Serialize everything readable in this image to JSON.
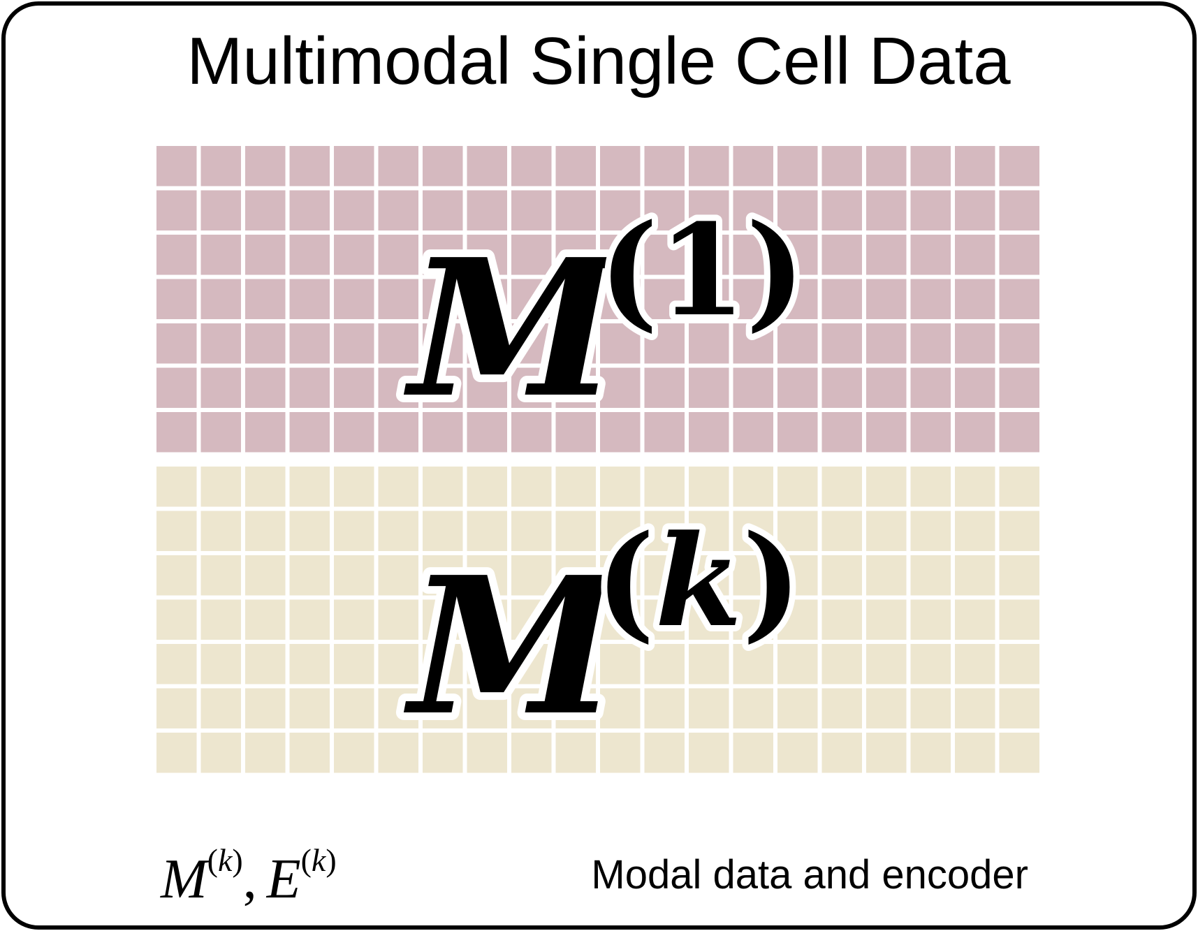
{
  "title": "Multimodal Single Cell Data",
  "modalities": [
    {
      "id": "modality-1",
      "base": "M",
      "superscript": "1",
      "color": "#d5b9bf",
      "rows": 7,
      "cols": 20
    },
    {
      "id": "modality-k",
      "base": "M",
      "superscript": "k",
      "color": "#ede6cf",
      "rows": 7,
      "cols": 20
    }
  ],
  "legend": {
    "m_base": "M",
    "m_sup": "k",
    "separator": ",",
    "e_base": "E",
    "e_sup": "k",
    "description": "Modal data and encoder"
  },
  "colors": {
    "border": "#000000",
    "grid_gap": "#ffffff"
  }
}
